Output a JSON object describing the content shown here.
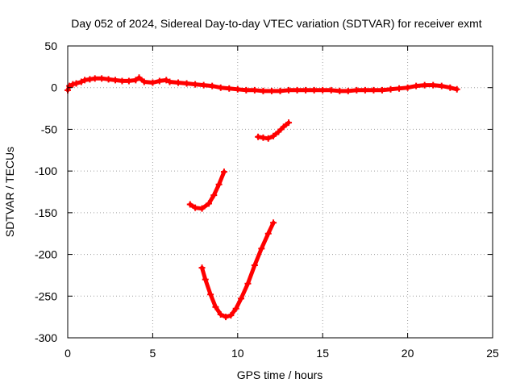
{
  "chart_data": {
    "type": "scatter",
    "title": "Day 052 of 2024, Sidereal Day-to-day VTEC variation (SDTVAR) for receiver exmt",
    "xlabel": "GPS time / hours",
    "ylabel": "SDTVAR / TECUs",
    "xlim": [
      0,
      25
    ],
    "ylim": [
      -300,
      50
    ],
    "xticks": [
      0,
      5,
      10,
      15,
      20,
      25
    ],
    "yticks": [
      50,
      0,
      -50,
      -100,
      -150,
      -200,
      -250,
      -300
    ],
    "grid": true,
    "color": "#ff0000",
    "series": [
      {
        "name": "arc-main",
        "points": [
          [
            0.0,
            -3
          ],
          [
            0.1,
            2
          ],
          [
            0.3,
            4
          ],
          [
            0.5,
            5
          ],
          [
            0.8,
            7
          ],
          [
            1.0,
            9
          ],
          [
            1.3,
            10
          ],
          [
            1.6,
            11
          ],
          [
            2.0,
            11
          ],
          [
            2.4,
            10
          ],
          [
            2.8,
            9
          ],
          [
            3.2,
            8
          ],
          [
            3.6,
            8
          ],
          [
            4.0,
            9
          ],
          [
            4.2,
            12
          ],
          [
            4.5,
            7
          ],
          [
            5.0,
            6
          ],
          [
            5.4,
            8
          ],
          [
            5.8,
            9
          ],
          [
            6.0,
            7
          ],
          [
            6.5,
            6
          ],
          [
            7.0,
            5
          ],
          [
            7.5,
            4
          ],
          [
            8.0,
            3
          ],
          [
            8.5,
            2
          ],
          [
            9.0,
            0
          ],
          [
            9.5,
            -1
          ],
          [
            10.0,
            -2
          ],
          [
            10.5,
            -3
          ],
          [
            11.0,
            -3
          ],
          [
            11.5,
            -4
          ],
          [
            12.0,
            -4
          ],
          [
            12.5,
            -4
          ],
          [
            13.0,
            -3
          ],
          [
            13.5,
            -3
          ],
          [
            14.0,
            -3
          ],
          [
            14.5,
            -3
          ],
          [
            15.0,
            -3
          ],
          [
            15.5,
            -3
          ],
          [
            16.0,
            -4
          ],
          [
            16.5,
            -4
          ],
          [
            17.0,
            -3
          ],
          [
            17.5,
            -3
          ],
          [
            18.0,
            -3
          ],
          [
            18.5,
            -3
          ],
          [
            19.0,
            -2
          ],
          [
            19.5,
            -1
          ],
          [
            20.0,
            0
          ],
          [
            20.5,
            2
          ],
          [
            21.0,
            3
          ],
          [
            21.5,
            3
          ],
          [
            22.0,
            2
          ],
          [
            22.5,
            0
          ],
          [
            22.9,
            -2
          ]
        ]
      },
      {
        "name": "arc-a",
        "points": [
          [
            11.2,
            -59
          ],
          [
            11.5,
            -60
          ],
          [
            11.8,
            -61
          ],
          [
            12.1,
            -58
          ],
          [
            12.4,
            -53
          ],
          [
            12.7,
            -47
          ],
          [
            13.0,
            -42
          ]
        ]
      },
      {
        "name": "arc-b",
        "points": [
          [
            7.2,
            -140
          ],
          [
            7.5,
            -144
          ],
          [
            7.9,
            -145
          ],
          [
            8.3,
            -139
          ],
          [
            8.6,
            -129
          ],
          [
            8.9,
            -116
          ],
          [
            9.2,
            -101
          ]
        ]
      },
      {
        "name": "arc-c",
        "points": [
          [
            7.9,
            -216
          ],
          [
            8.1,
            -230
          ],
          [
            8.4,
            -248
          ],
          [
            8.7,
            -263
          ],
          [
            9.0,
            -272
          ],
          [
            9.3,
            -275
          ],
          [
            9.6,
            -273
          ],
          [
            9.9,
            -265
          ],
          [
            10.2,
            -253
          ],
          [
            10.6,
            -235
          ],
          [
            11.0,
            -213
          ],
          [
            11.4,
            -193
          ],
          [
            11.8,
            -175
          ],
          [
            12.1,
            -162
          ]
        ]
      }
    ]
  }
}
